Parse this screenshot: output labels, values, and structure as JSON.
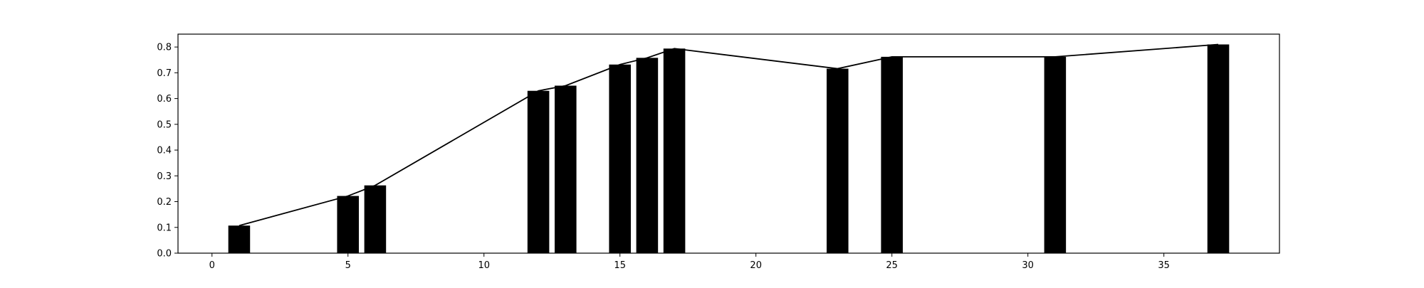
{
  "chart_data": {
    "type": "bar",
    "title": "",
    "xlabel": "",
    "ylabel": "",
    "xlim": [
      -1.25,
      39.25
    ],
    "ylim": [
      0.0,
      0.85
    ],
    "x_ticks": [
      0,
      5,
      10,
      15,
      20,
      25,
      30,
      35
    ],
    "y_ticks": [
      0.0,
      0.1,
      0.2,
      0.3,
      0.4,
      0.5,
      0.6,
      0.7,
      0.8
    ],
    "grid": false,
    "legend": "none",
    "bar_width": 0.8,
    "bar_color": "#000000",
    "line_color": "#000000",
    "series": [
      {
        "type": "bar",
        "x": [
          1,
          5,
          6,
          12,
          13,
          15,
          16,
          17,
          23,
          25,
          31,
          37
        ],
        "values": [
          0.107,
          0.222,
          0.263,
          0.63,
          0.65,
          0.732,
          0.758,
          0.794,
          0.716,
          0.762,
          0.762,
          0.81
        ]
      },
      {
        "type": "line",
        "x": [
          1,
          5,
          6,
          12,
          13,
          15,
          16,
          17,
          23,
          25,
          31,
          37
        ],
        "values": [
          0.107,
          0.222,
          0.263,
          0.63,
          0.65,
          0.732,
          0.758,
          0.794,
          0.716,
          0.762,
          0.762,
          0.81
        ]
      }
    ]
  }
}
